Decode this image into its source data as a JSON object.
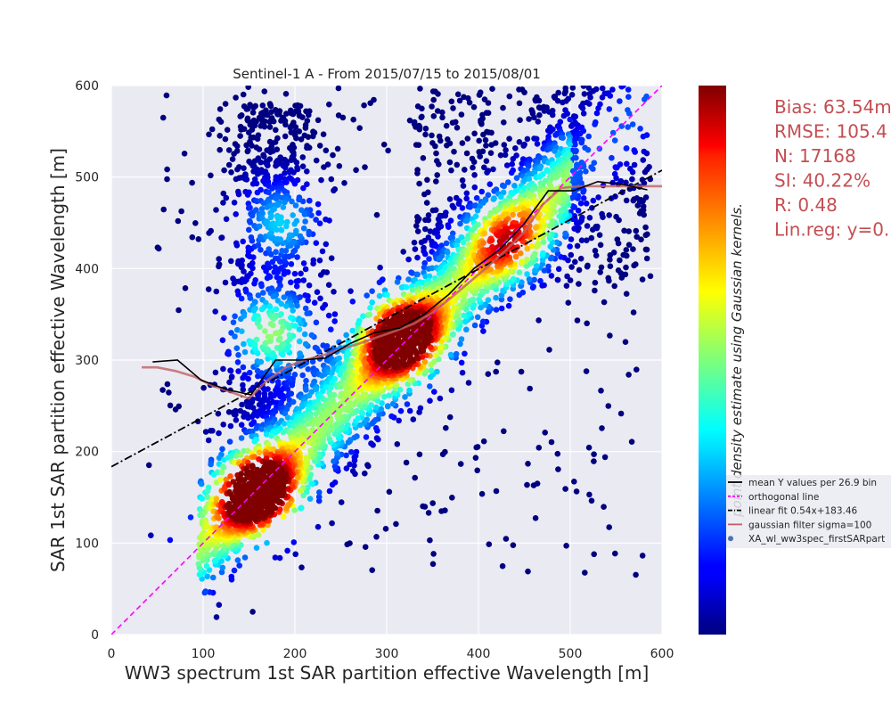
{
  "chart_data": {
    "type": "scatter",
    "title": "Sentinel-1 A - From 2015/07/15 to 2015/08/01",
    "xlabel": "WW3 spectrum 1st SAR partition effective Wavelength [m]",
    "ylabel": "SAR 1st SAR partition effective Wavelength [m]",
    "xlim": [
      0,
      600
    ],
    "ylim": [
      0,
      600
    ],
    "x_ticks": [
      "0",
      "100",
      "200",
      "300",
      "400",
      "500",
      "600"
    ],
    "y_ticks": [
      "0",
      "100",
      "200",
      "300",
      "400",
      "500",
      "600"
    ],
    "grid": true,
    "colormap": "jet",
    "colorbar_label": "point density estimate using Gaussian kernels.",
    "density_clusters": [
      {
        "x": 160,
        "y": 155,
        "weight": 1.0
      },
      {
        "x": 315,
        "y": 325,
        "weight": 0.95
      },
      {
        "x": 175,
        "y": 330,
        "weight": 0.55
      },
      {
        "x": 185,
        "y": 450,
        "weight": 0.35
      },
      {
        "x": 430,
        "y": 430,
        "weight": 0.45
      }
    ],
    "mean_y_per_bin": {
      "name": "mean Y values per 26.9 bin",
      "color": "#000000",
      "x": [
        45,
        72,
        98,
        125,
        152,
        179,
        206,
        233,
        260,
        287,
        314,
        341,
        368,
        395,
        422,
        449,
        476,
        503,
        530,
        557,
        584
      ],
      "y": [
        298,
        300,
        278,
        268,
        262,
        300,
        300,
        302,
        318,
        330,
        335,
        350,
        372,
        400,
        420,
        448,
        485,
        485,
        495,
        492,
        486
      ]
    },
    "orthogonal_line": {
      "name": "orthogonal line",
      "color": "#ff00ff",
      "style": "dashed",
      "x": [
        0,
        600
      ],
      "y": [
        0,
        600
      ]
    },
    "linear_fit": {
      "name": "linear fit 0.54x+183.46",
      "color": "#000000",
      "style": "dashdot",
      "slope": 0.54,
      "intercept": 183.46
    },
    "gaussian_filter": {
      "name": "gaussian filter sigma=100",
      "color": "#c06060",
      "x": [
        33,
        50,
        70,
        90,
        110,
        130,
        150,
        170,
        190,
        210,
        230,
        250,
        270,
        290,
        310,
        330,
        350,
        370,
        390,
        410,
        430,
        450,
        470,
        490,
        510,
        530,
        550,
        570,
        600
      ],
      "y": [
        292,
        292,
        288,
        282,
        272,
        265,
        258,
        278,
        292,
        300,
        305,
        312,
        318,
        325,
        332,
        340,
        352,
        368,
        385,
        402,
        420,
        440,
        470,
        488,
        490,
        490,
        490,
        490,
        490
      ]
    },
    "scatter_series_name": "XA_wl_ww3spec_firstSARpart",
    "annotations": [
      "Bias: 63.54m",
      "RMSE: 105.4",
      "N: 17168",
      "SI: 40.22%",
      "R: 0.48",
      "Lin.reg: y=0."
    ],
    "legend_position": "right"
  }
}
